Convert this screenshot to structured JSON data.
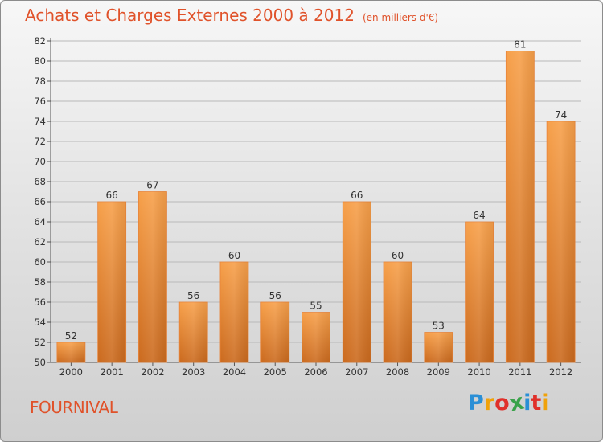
{
  "header": {
    "title": "Achats et Charges Externes 2000 à 2012",
    "unit": "(en milliers d'€)"
  },
  "footer": {
    "commune": "FOURNIVAL",
    "logo_text": "Proxiti",
    "logo_colors": [
      "#2a8fd6",
      "#f0a20a",
      "#e0302a",
      "#3aa24a",
      "#2a8fd6",
      "#e0302a",
      "#f0a20a"
    ]
  },
  "chart_data": {
    "type": "bar",
    "categories": [
      "2000",
      "2001",
      "2002",
      "2003",
      "2004",
      "2005",
      "2006",
      "2007",
      "2008",
      "2009",
      "2010",
      "2011",
      "2012"
    ],
    "values": [
      52,
      66,
      67,
      56,
      60,
      56,
      55,
      66,
      60,
      53,
      64,
      81,
      74
    ],
    "data_labels": [
      "52",
      "66",
      "67",
      "56",
      "60",
      "56",
      "55",
      "66",
      "60",
      "53",
      "64",
      "81",
      "74"
    ],
    "ylim": [
      50,
      82
    ],
    "yticks": [
      "50",
      "52",
      "54",
      "56",
      "58",
      "60",
      "62",
      "64",
      "66",
      "68",
      "70",
      "72",
      "74",
      "76",
      "78",
      "80",
      "82"
    ],
    "grid": true,
    "bar_color": "#f29640",
    "bar_color_dark": "#cc6a1c"
  }
}
